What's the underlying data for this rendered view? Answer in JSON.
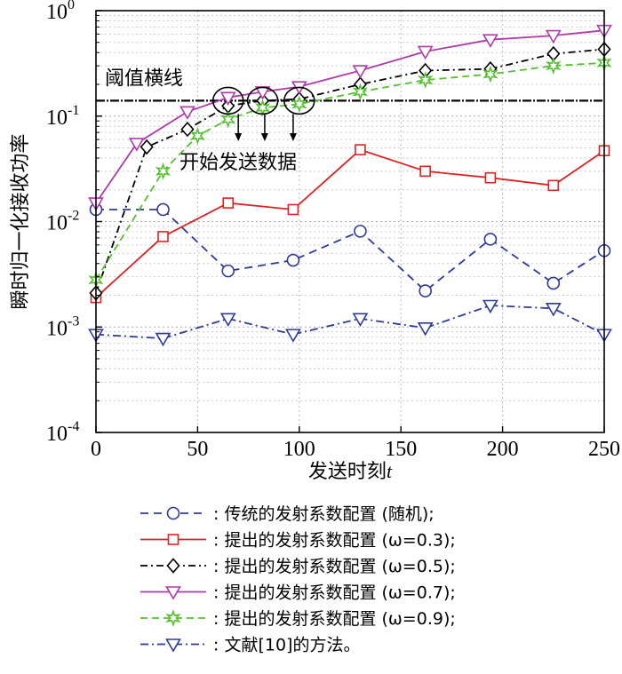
{
  "chart_data": {
    "type": "line",
    "ylog": true,
    "xlim": [
      0,
      250
    ],
    "ylim": [
      0.0001,
      1
    ],
    "xlabel": "发送时刻",
    "xlabel_var": "t",
    "ylabel": "瞬时归一化接收功率",
    "grid": true,
    "x_ticks": [
      0,
      50,
      100,
      150,
      200,
      250
    ],
    "y_ticks": [
      {
        "value": 1,
        "base": "10",
        "exp": "0"
      },
      {
        "value": 0.1,
        "base": "10",
        "exp": "-1"
      },
      {
        "value": 0.01,
        "base": "10",
        "exp": "-2"
      },
      {
        "value": 0.001,
        "base": "10",
        "exp": "-3"
      },
      {
        "value": 0.0001,
        "base": "10",
        "exp": "-4"
      }
    ],
    "threshold": {
      "value": 0.14,
      "label": "阈值横线",
      "color": "#000000"
    },
    "annotation": {
      "label": "开始发送数据",
      "circles_x": [
        65,
        82,
        100
      ],
      "circles_y": 0.14,
      "arrow_targets_x": [
        70,
        83,
        97
      ]
    },
    "legend_position": "below",
    "series": [
      {
        "name": ": 传统的发射系数配置 (随机);",
        "color": "#2e3a9a",
        "dash": "9,6",
        "marker": "circle",
        "x": [
          0,
          33,
          65,
          97,
          130,
          162,
          194,
          225,
          250
        ],
        "values": [
          0.013,
          0.013,
          0.0034,
          0.0043,
          0.0081,
          0.0022,
          0.0068,
          0.0026,
          0.0053
        ]
      },
      {
        "name": ": 提出的发射系数配置 (ω=0.3);",
        "color": "#dd2222",
        "dash": "",
        "marker": "square",
        "x": [
          0,
          33,
          65,
          97,
          130,
          162,
          194,
          225,
          250
        ],
        "values": [
          0.0019,
          0.0072,
          0.015,
          0.013,
          0.048,
          0.03,
          0.026,
          0.022,
          0.047
        ]
      },
      {
        "name": ": 提出的发射系数配置 (ω=0.5);",
        "color": "#000000",
        "dash": "8,4,2,4",
        "marker": "diamond",
        "x": [
          0,
          25,
          45,
          65,
          82,
          100,
          130,
          162,
          194,
          225,
          250
        ],
        "values": [
          0.0021,
          0.051,
          0.075,
          0.125,
          0.14,
          0.145,
          0.2,
          0.27,
          0.28,
          0.39,
          0.43
        ]
      },
      {
        "name": ": 提出的发射系数配置 (ω=0.7);",
        "color": "#b03aa8",
        "dash": "",
        "marker": "triangle-down",
        "x": [
          0,
          20,
          45,
          65,
          82,
          100,
          130,
          162,
          194,
          225,
          250
        ],
        "values": [
          0.015,
          0.055,
          0.11,
          0.15,
          0.17,
          0.19,
          0.27,
          0.41,
          0.53,
          0.58,
          0.65
        ]
      },
      {
        "name": ": 提出的发射系数配置 (ω=0.9);",
        "color": "#55c030",
        "dash": "8,5",
        "marker": "star",
        "x": [
          0,
          33,
          50,
          65,
          82,
          100,
          130,
          162,
          194,
          225,
          250
        ],
        "values": [
          0.0028,
          0.03,
          0.065,
          0.093,
          0.12,
          0.13,
          0.17,
          0.22,
          0.25,
          0.3,
          0.32
        ]
      },
      {
        "name": ": 文献[10]的方法。",
        "color": "#2e3a9a",
        "dash": "9,4,2,4",
        "marker": "triangle-down",
        "x": [
          0,
          33,
          65,
          97,
          130,
          162,
          194,
          225,
          250
        ],
        "values": [
          0.00085,
          0.00078,
          0.0012,
          0.00085,
          0.0012,
          0.00098,
          0.0016,
          0.0015,
          0.00085
        ]
      }
    ]
  }
}
